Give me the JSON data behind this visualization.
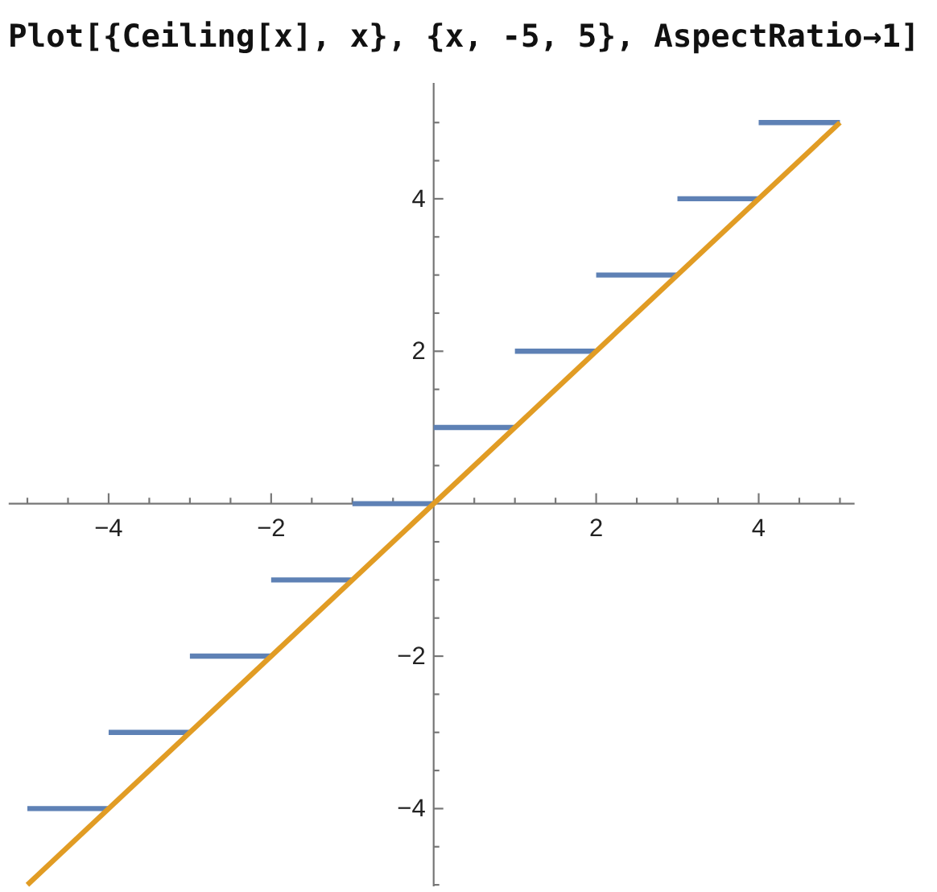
{
  "chart_data": {
    "type": "line",
    "title": "Plot[{Ceiling[x], x}, {x, -5, 5}, AspectRatio→1]",
    "xlim": [
      -5.23,
      5.18
    ],
    "ylim": [
      -5.02,
      5.52
    ],
    "xticks": [
      {
        "value": -5,
        "label": null
      },
      {
        "value": -4.5,
        "label": null
      },
      -4,
      {
        "value": -3.5,
        "label": null
      },
      {
        "value": -3,
        "label": null
      },
      {
        "value": -2.5,
        "label": null
      },
      -2,
      {
        "value": -1.5,
        "label": null
      },
      {
        "value": -1,
        "label": null
      },
      {
        "value": -0.5,
        "label": null
      },
      {
        "value": 0.5,
        "label": null
      },
      {
        "value": 1,
        "label": null
      },
      {
        "value": 1.5,
        "label": null
      },
      2,
      {
        "value": 2.5,
        "label": null
      },
      {
        "value": 3,
        "label": null
      },
      {
        "value": 3.5,
        "label": null
      },
      4,
      {
        "value": 4.5,
        "label": null
      },
      {
        "value": 5,
        "label": null
      }
    ],
    "yticks": [
      {
        "value": -5,
        "label": null
      },
      {
        "value": -4.5,
        "label": null
      },
      -4,
      {
        "value": -3.5,
        "label": null
      },
      {
        "value": -3,
        "label": null
      },
      {
        "value": -2.5,
        "label": null
      },
      -2,
      {
        "value": -1.5,
        "label": null
      },
      {
        "value": -1,
        "label": null
      },
      {
        "value": -0.5,
        "label": null
      },
      {
        "value": 0.5,
        "label": null
      },
      {
        "value": 1,
        "label": null
      },
      {
        "value": 1.5,
        "label": null
      },
      2,
      {
        "value": 2.5,
        "label": null
      },
      {
        "value": 3,
        "label": null
      },
      {
        "value": 3.5,
        "label": null
      },
      4,
      {
        "value": 4.5,
        "label": null
      },
      {
        "value": 5,
        "label": null
      }
    ],
    "series": [
      {
        "color": "#5e81b5",
        "x": [
          -5,
          -4,
          null,
          -4,
          -3,
          null,
          -3,
          -2,
          null,
          -2,
          -1,
          null,
          -1,
          0,
          null,
          0,
          1,
          null,
          1,
          2,
          null,
          2,
          3,
          null,
          3,
          4,
          null,
          4,
          5
        ],
        "values": [
          -4,
          -4,
          null,
          -3,
          -3,
          null,
          -2,
          -2,
          null,
          -1,
          -1,
          null,
          0,
          0,
          null,
          1,
          1,
          null,
          2,
          2,
          null,
          3,
          3,
          null,
          4,
          4,
          null,
          5,
          5
        ]
      },
      {
        "color": "#e19c24",
        "x": [
          -5,
          5
        ],
        "values": [
          -5,
          5
        ]
      }
    ]
  }
}
